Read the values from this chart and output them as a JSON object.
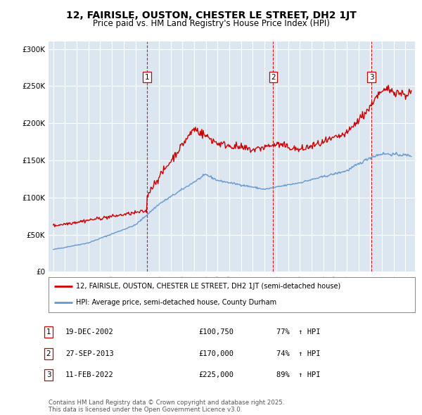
{
  "title": "12, FAIRISLE, OUSTON, CHESTER LE STREET, DH2 1JT",
  "subtitle": "Price paid vs. HM Land Registry's House Price Index (HPI)",
  "legend_label_red": "12, FAIRISLE, OUSTON, CHESTER LE STREET, DH2 1JT (semi-detached house)",
  "legend_label_blue": "HPI: Average price, semi-detached house, County Durham",
  "footer": "Contains HM Land Registry data © Crown copyright and database right 2025.\nThis data is licensed under the Open Government Licence v3.0.",
  "sales": [
    {
      "label": "1",
      "date": "19-DEC-2002",
      "price": 100750,
      "pct": "77%",
      "dir": "↑",
      "x_year": 2002.97
    },
    {
      "label": "2",
      "date": "27-SEP-2013",
      "price": 170000,
      "pct": "74%",
      "dir": "↑",
      "x_year": 2013.74
    },
    {
      "label": "3",
      "date": "11-FEB-2022",
      "price": 225000,
      "pct": "89%",
      "dir": "↑",
      "x_year": 2022.12
    }
  ],
  "ylim": [
    0,
    310000
  ],
  "yticks": [
    0,
    50000,
    100000,
    150000,
    200000,
    250000,
    300000
  ],
  "ytick_labels": [
    "£0",
    "£50K",
    "£100K",
    "£150K",
    "£200K",
    "£250K",
    "£300K"
  ],
  "bg_color": "#dce6f1",
  "red_color": "#cc0000",
  "blue_color": "#6699cc",
  "vline_color": "#cc0000",
  "grid_color": "#ffffff",
  "xlim_left": 1994.6,
  "xlim_right": 2025.8
}
